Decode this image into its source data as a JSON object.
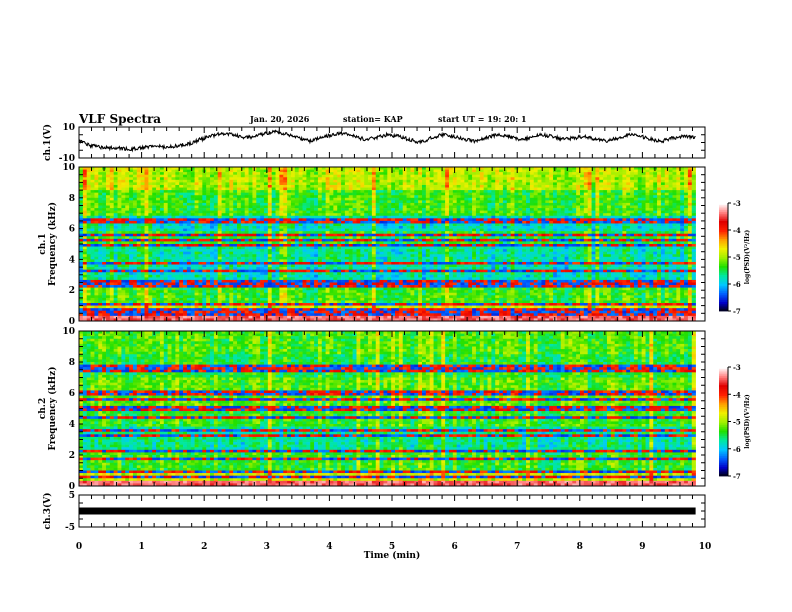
{
  "header": {
    "title": "VLF Spectra",
    "date": "Jan. 20, 2026",
    "station": "station= KAP",
    "start_ut": "start  UT  =   19: 20: 1"
  },
  "colors": {
    "trace": "#000000",
    "axis": "#000000",
    "colormap": [
      "#000000",
      "#0000c8",
      "#0060ff",
      "#00c8ff",
      "#00e8a0",
      "#20e000",
      "#a0f000",
      "#f0f000",
      "#ffa000",
      "#ff2000",
      "#e00000",
      "#ff8080",
      "#ffffff"
    ]
  },
  "chart_data": [
    {
      "type": "line",
      "panel": "ch1-voltage",
      "ylabel": "ch.1(V)",
      "ylim": [
        -10,
        10
      ],
      "yticks": [
        "10",
        "-10"
      ],
      "xlim": [
        0,
        10
      ],
      "x_end": 9.85,
      "description": "Time-domain voltage trace, oscillating roughly between -8 and 8 V",
      "values": [
        1,
        -2,
        -3,
        -3.5,
        -4,
        -4,
        -3,
        -2.5,
        -3,
        -2,
        -1,
        2,
        4,
        6,
        5,
        3,
        4,
        6,
        7,
        5,
        3,
        1,
        3,
        5,
        6,
        4,
        2,
        3,
        5,
        4,
        2,
        0,
        3,
        5,
        4,
        2,
        1,
        3,
        5,
        4,
        2,
        3,
        5,
        4,
        2,
        3,
        4,
        2,
        1,
        3,
        5,
        4,
        2,
        1,
        3,
        4,
        3
      ]
    },
    {
      "type": "heatmap",
      "panel": "ch1-spectrogram",
      "ylabel": "ch.1\nFrequency (kHz)",
      "ylim": [
        0,
        10
      ],
      "yticks": [
        "0",
        "2",
        "4",
        "6",
        "8",
        "10"
      ],
      "xlim": [
        0,
        10
      ],
      "colorbar": {
        "label": "log(PSD)(V²/Hz)",
        "range": [
          -7,
          -3
        ],
        "ticks": [
          "-3",
          "-4",
          "-5",
          "-6",
          "-7"
        ]
      },
      "bands_khz": [
        0.2,
        0.5,
        0.8,
        1.1,
        2.2,
        2.5,
        3.3,
        3.8,
        4.9,
        5.3,
        5.6,
        6.5
      ]
    },
    {
      "type": "heatmap",
      "panel": "ch2-spectrogram",
      "ylabel": "ch.2\nFrequency (kHz)",
      "ylim": [
        0,
        10
      ],
      "yticks": [
        "0",
        "2",
        "4",
        "6",
        "8",
        "10"
      ],
      "xlim": [
        0,
        10
      ],
      "colorbar": {
        "label": "log(PSD)(V²/Hz)",
        "range": [
          -7,
          -3
        ],
        "ticks": [
          "-3",
          "-4",
          "-5",
          "-6",
          "-7"
        ]
      },
      "bands_khz": [
        0.2,
        0.6,
        0.9,
        1.8,
        2.2,
        3.2,
        3.6,
        4.4,
        5.0,
        5.6,
        6.0,
        7.5,
        7.8
      ]
    },
    {
      "type": "line",
      "panel": "ch3-voltage",
      "ylabel": "ch.3(V)",
      "ylim": [
        -5,
        5
      ],
      "yticks": [
        "5",
        "-5"
      ],
      "xlim": [
        0,
        10
      ],
      "x_end": 9.85,
      "values": [
        0,
        0
      ],
      "description": "Flat, thick black constant line near 0 V"
    }
  ],
  "xaxis": {
    "label": "Time (min)",
    "ticks": [
      "0",
      "1",
      "2",
      "3",
      "4",
      "5",
      "6",
      "7",
      "8",
      "9",
      "10"
    ]
  }
}
